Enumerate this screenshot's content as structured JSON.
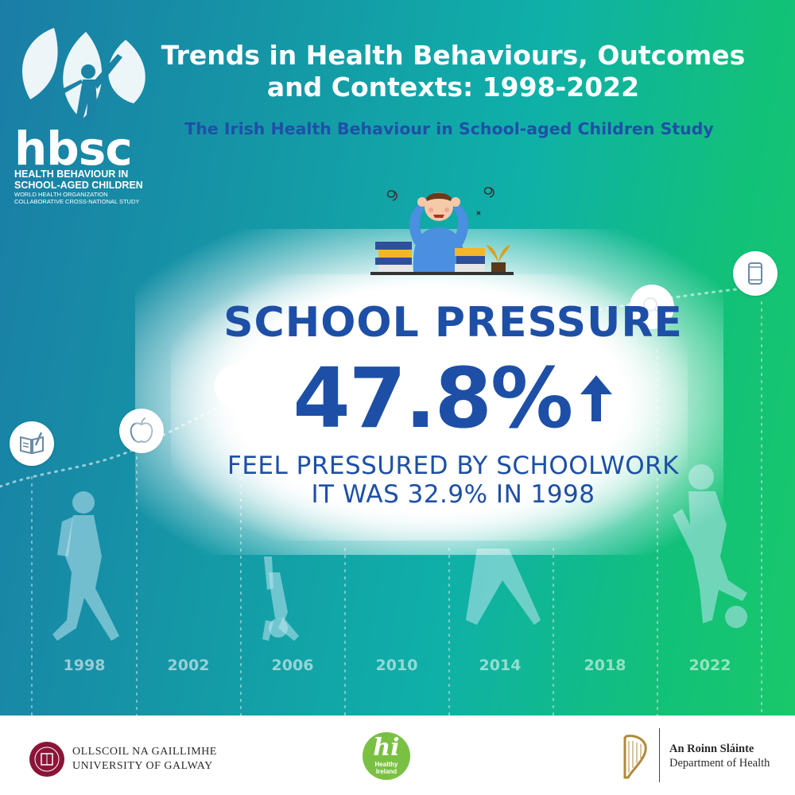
{
  "header": {
    "title_line1": "Trends in Health Behaviours, Outcomes",
    "title_line2": "and Contexts: 1998-2022",
    "subtitle": "The Irish Health Behaviour in School-aged Children Study"
  },
  "logo": {
    "wordmark": "hbsc",
    "line1": "HEALTH BEHAVIOUR IN",
    "line2": "SCHOOL-AGED CHILDREN",
    "line3": "WORLD HEALTH ORGANIZATION",
    "line4": "COLLABORATIVE CROSS-NATIONAL STUDY"
  },
  "stat": {
    "heading": "SCHOOL PRESSURE",
    "value": "47.8%",
    "trend": "up",
    "desc_line1": "FEEL PRESSURED BY SCHOOLWORK",
    "desc_line2": "IT WAS 32.9% IN 1998"
  },
  "timeline": {
    "years": [
      "1998",
      "2002",
      "2006",
      "2010",
      "2014",
      "2018",
      "2022"
    ],
    "icons": [
      "book-pencil-icon",
      "apple-icon",
      "stretching-person-icon",
      "magnifier-icon",
      "drink-can-icon"
    ]
  },
  "footer": {
    "galway_ga": "OLLSCOIL NA GAILLIMHE",
    "galway_en": "UNIVERSITY OF GALWAY",
    "hi_mark": "hi",
    "hi_text_line1": "Healthy",
    "hi_text_line2": "Ireland",
    "doh_ga": "An Roinn Sláinte",
    "doh_en": "Department of Health"
  },
  "colors": {
    "accent_blue": "#1d4fa6",
    "gradient_start": "#1a7da6",
    "gradient_end": "#19c86a",
    "healthy_ireland_green": "#7ac143"
  }
}
